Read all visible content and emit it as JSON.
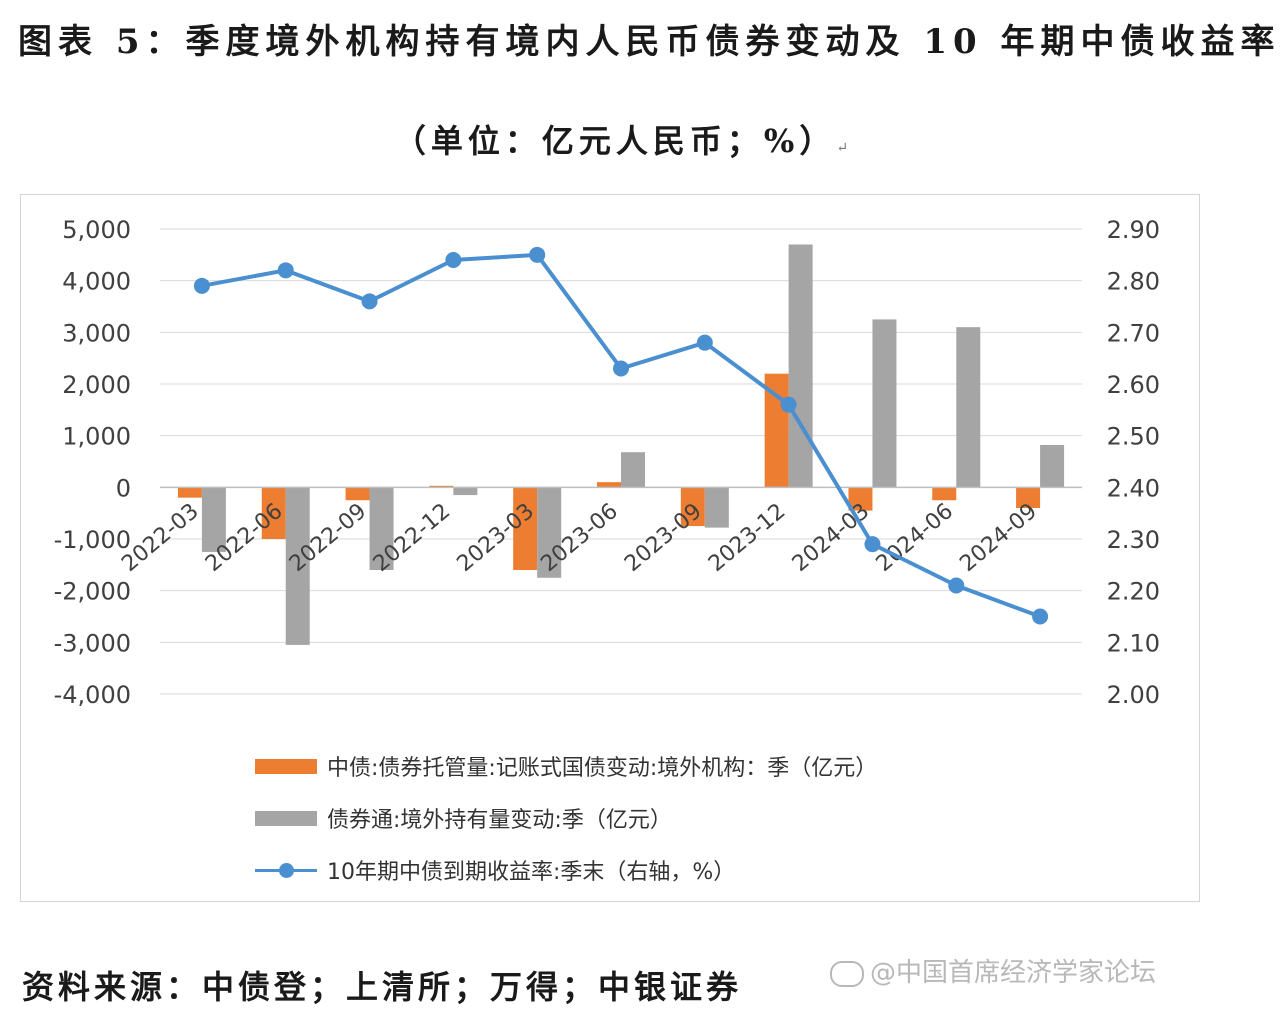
{
  "header": {
    "title": "图表 5：季度境外机构持有境内人民币债券变动及 10 年期中债收益率",
    "subtitle": "（单位：亿元人民币；%）",
    "return_mark": "↵"
  },
  "footer": {
    "source": "资料来源：中债登；上清所；万得；中银证券",
    "watermark": "@中国首席经济学家论坛"
  },
  "colors": {
    "orange": "#ED7D31",
    "gray": "#A5A5A5",
    "blue": "#4A8FD0",
    "grid": "#d9d9d9"
  },
  "chart_data": {
    "type": "bar",
    "categories": [
      "2022-03",
      "2022-06",
      "2022-09",
      "2022-12",
      "2023-03",
      "2023-06",
      "2023-09",
      "2023-12",
      "2024-03",
      "2024-06",
      "2024-09"
    ],
    "left_axis": {
      "ticks": [
        "5,000",
        "4,000",
        "3,000",
        "2,000",
        "1,000",
        "0",
        "-1,000",
        "-2,000",
        "-3,000",
        "-4,000"
      ],
      "range": [
        -4000,
        5000
      ]
    },
    "right_axis": {
      "ticks": [
        "2.90",
        "2.80",
        "2.70",
        "2.60",
        "2.50",
        "2.40",
        "2.30",
        "2.20",
        "2.10",
        "2.00"
      ],
      "range": [
        2.0,
        2.9
      ]
    },
    "series": [
      {
        "name": "中债:债券托管量:记账式国债变动:境外机构：季（亿元）",
        "type": "bar",
        "axis": "left",
        "values": [
          -200,
          -1000,
          -250,
          30,
          -1600,
          100,
          -750,
          2200,
          -450,
          -250,
          -400
        ]
      },
      {
        "name": "债券通:境外持有量变动:季（亿元）",
        "type": "bar",
        "axis": "left",
        "values": [
          -1250,
          -3050,
          -1600,
          -150,
          -1750,
          680,
          -780,
          4700,
          3250,
          3100,
          820
        ]
      },
      {
        "name": "10年期中债到期收益率:季末（右轴，%）",
        "type": "line",
        "axis": "right",
        "values": [
          2.79,
          2.82,
          2.76,
          2.84,
          2.85,
          2.63,
          2.68,
          2.56,
          2.29,
          2.21,
          2.15
        ]
      }
    ],
    "legend_position": "bottom"
  }
}
